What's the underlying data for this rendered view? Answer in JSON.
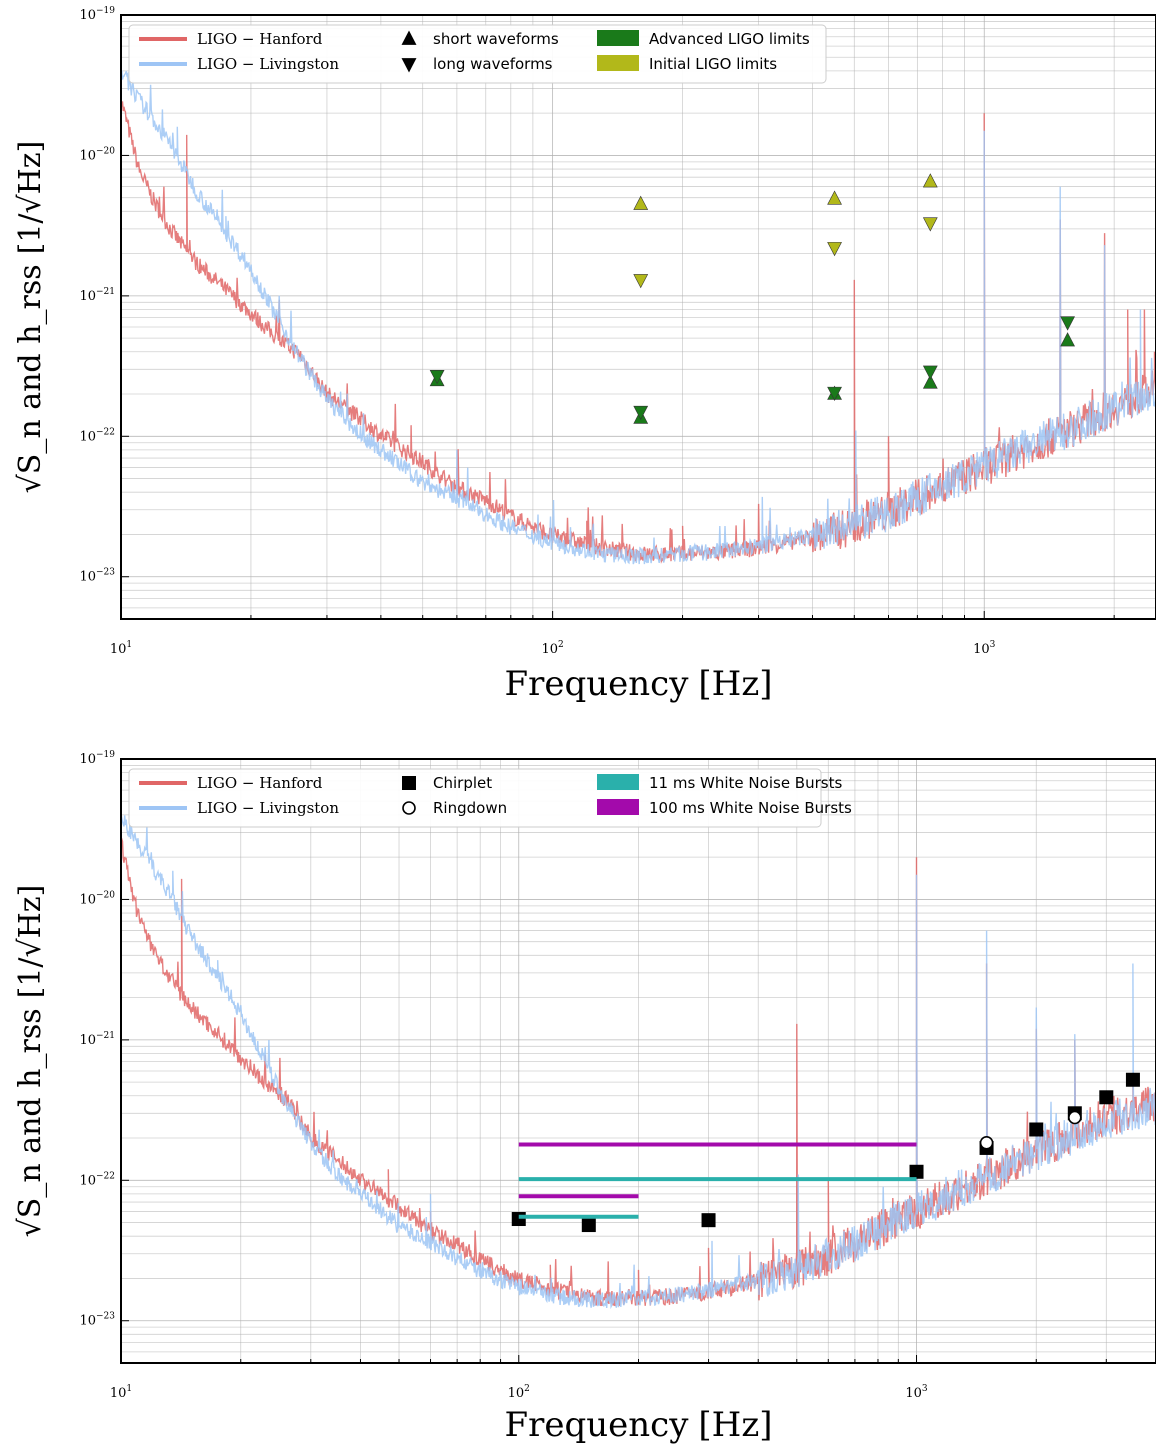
{
  "chart_data": [
    {
      "type": "line",
      "xscale": "log",
      "yscale": "log",
      "xlim": [
        10,
        2500
      ],
      "ylim": [
        5e-24,
        1e-19
      ],
      "grid": true,
      "legend_position": "top-left",
      "xlabel_text": "Frequency",
      "xlabel_unit": "[Hz]",
      "ylabel_text": "√S_n  and  h_rss",
      "ylabel_unit": "[1/√Hz]",
      "x_ticks": [
        {
          "value": 10,
          "base": "10",
          "exp": "1"
        },
        {
          "value": 100,
          "base": "10",
          "exp": "2"
        },
        {
          "value": 1000,
          "base": "10",
          "exp": "3"
        }
      ],
      "y_ticks": [
        {
          "value": 1e-19,
          "base": "10",
          "exp": "−19"
        },
        {
          "value": 1e-20,
          "base": "10",
          "exp": "−20"
        },
        {
          "value": 1e-21,
          "base": "10",
          "exp": "−21"
        },
        {
          "value": 1e-22,
          "base": "10",
          "exp": "−22"
        },
        {
          "value": 1e-23,
          "base": "10",
          "exp": "−23"
        }
      ],
      "series": [
        {
          "name": "LIGO − Hanford",
          "color": "#e06666",
          "floor": [
            [
              10,
              2.5e-20
            ],
            [
              11,
              8e-21
            ],
            [
              12,
              4.5e-21
            ],
            [
              13,
              3e-21
            ],
            [
              14,
              2.2e-21
            ],
            [
              15,
              1.7e-21
            ],
            [
              17,
              1.2e-21
            ],
            [
              20,
              7.5e-22
            ],
            [
              23,
              5e-22
            ],
            [
              26,
              3.8e-22
            ],
            [
              30,
              2e-22
            ],
            [
              35,
              1.4e-22
            ],
            [
              40,
              1.02e-22
            ],
            [
              50,
              6.5e-23
            ],
            [
              60,
              4.3e-23
            ],
            [
              70,
              3.5e-23
            ],
            [
              80,
              2.7e-23
            ],
            [
              100,
              1.95e-23
            ],
            [
              130,
              1.6e-23
            ],
            [
              160,
              1.45e-23
            ],
            [
              200,
              1.45e-23
            ],
            [
              250,
              1.5e-23
            ],
            [
              300,
              1.6e-23
            ],
            [
              400,
              1.9e-23
            ],
            [
              500,
              2.3e-23
            ],
            [
              600,
              2.9e-23
            ],
            [
              700,
              3.6e-23
            ],
            [
              800,
              4.4e-23
            ],
            [
              1000,
              6e-23
            ],
            [
              1300,
              8.7e-23
            ],
            [
              1600,
              1.15e-22
            ],
            [
              2000,
              1.6e-22
            ],
            [
              2500,
              2.2e-22
            ]
          ],
          "lines": [
            [
              14.2,
              1.4e-20
            ],
            [
              47,
              1.2e-22
            ],
            [
              60,
              6e-23
            ],
            [
              70,
              3.5e-23
            ],
            [
              120,
              2.5e-23
            ],
            [
              200,
              2.3e-23
            ],
            [
              300,
              3.3e-23
            ],
            [
              500,
              1.3e-21
            ],
            [
              600,
              1e-22
            ],
            [
              1000,
              2e-20
            ],
            [
              1500,
              3.5e-21
            ],
            [
              1900,
              2.8e-21
            ],
            [
              2150,
              8e-22
            ],
            [
              2350,
              8e-22
            ],
            [
              2480,
              4e-22
            ]
          ]
        },
        {
          "name": "LIGO − Livingston",
          "color": "#9ec5f5",
          "floor": [
            [
              10,
              4e-20
            ],
            [
              11,
              2.5e-20
            ],
            [
              12,
              1.7e-20
            ],
            [
              13,
              1.2e-20
            ],
            [
              14,
              8e-21
            ],
            [
              15,
              5.5e-21
            ],
            [
              17,
              3.2e-21
            ],
            [
              20,
              1.55e-21
            ],
            [
              23,
              7e-22
            ],
            [
              26,
              3.6e-22
            ],
            [
              30,
              1.85e-22
            ],
            [
              35,
              1.1e-22
            ],
            [
              40,
              8e-23
            ],
            [
              50,
              4.7e-23
            ],
            [
              60,
              3.6e-23
            ],
            [
              70,
              2.8e-23
            ],
            [
              80,
              2.25e-23
            ],
            [
              100,
              1.75e-23
            ],
            [
              130,
              1.45e-23
            ],
            [
              160,
              1.4e-23
            ],
            [
              200,
              1.45e-23
            ],
            [
              250,
              1.52e-23
            ],
            [
              300,
              1.65e-23
            ],
            [
              400,
              1.95e-23
            ],
            [
              500,
              2.35e-23
            ],
            [
              600,
              2.9e-23
            ],
            [
              700,
              3.6e-23
            ],
            [
              800,
              4.4e-23
            ],
            [
              1000,
              6.1e-23
            ],
            [
              1300,
              8.8e-23
            ],
            [
              1600,
              1.15e-22
            ],
            [
              2000,
              1.6e-22
            ],
            [
              2500,
              2.1e-22
            ]
          ],
          "lines": [
            [
              13.5,
              1.6e-20
            ],
            [
              17.5,
              3.7e-21
            ],
            [
              60,
              8e-23
            ],
            [
              306,
              3.7e-23
            ],
            [
              504,
              1.1e-22
            ],
            [
              1000,
              1.5e-20
            ],
            [
              1500,
              6e-21
            ],
            [
              1900,
              2.3e-21
            ],
            [
              2300,
              8e-22
            ]
          ]
        },
        {
          "name": "short waveforms",
          "marker": "triangle-up",
          "color": "#000000"
        },
        {
          "name": "long waveforms",
          "marker": "triangle-down",
          "color": "#000000"
        },
        {
          "name": "Advanced LIGO limits",
          "color": "#1a7a1a",
          "points": [
            {
              "x": 54,
              "y": 2.5e-22,
              "marker": "up"
            },
            {
              "x": 54,
              "y": 2.7e-22,
              "marker": "down"
            },
            {
              "x": 160,
              "y": 1.35e-22,
              "marker": "up"
            },
            {
              "x": 160,
              "y": 1.5e-22,
              "marker": "down"
            },
            {
              "x": 450,
              "y": 2e-22,
              "marker": "up"
            },
            {
              "x": 450,
              "y": 2.05e-22,
              "marker": "down"
            },
            {
              "x": 750,
              "y": 2.4e-22,
              "marker": "up"
            },
            {
              "x": 750,
              "y": 2.9e-22,
              "marker": "down"
            },
            {
              "x": 1560,
              "y": 4.8e-22,
              "marker": "up"
            },
            {
              "x": 1560,
              "y": 6.5e-22,
              "marker": "down"
            }
          ]
        },
        {
          "name": "Initial LIGO limits",
          "color": "#b2b81a",
          "points": [
            {
              "x": 160,
              "y": 4.5e-21,
              "marker": "up"
            },
            {
              "x": 160,
              "y": 1.3e-21,
              "marker": "down"
            },
            {
              "x": 450,
              "y": 4.9e-21,
              "marker": "up"
            },
            {
              "x": 450,
              "y": 2.2e-21,
              "marker": "down"
            },
            {
              "x": 750,
              "y": 6.5e-21,
              "marker": "up"
            },
            {
              "x": 750,
              "y": 3.3e-21,
              "marker": "down"
            }
          ]
        }
      ]
    },
    {
      "type": "line",
      "xscale": "log",
      "yscale": "log",
      "xlim": [
        10,
        4000
      ],
      "ylim": [
        5e-24,
        1e-19
      ],
      "grid": true,
      "legend_position": "top-left",
      "xlabel_text": "Frequency",
      "xlabel_unit": "[Hz]",
      "ylabel_text": "√S_n  and  h_rss",
      "ylabel_unit": "[1/√Hz]",
      "x_ticks": [
        {
          "value": 10,
          "base": "10",
          "exp": "1"
        },
        {
          "value": 100,
          "base": "10",
          "exp": "2"
        },
        {
          "value": 1000,
          "base": "10",
          "exp": "3"
        }
      ],
      "y_ticks": [
        {
          "value": 1e-19,
          "base": "10",
          "exp": "−19"
        },
        {
          "value": 1e-20,
          "base": "10",
          "exp": "−20"
        },
        {
          "value": 1e-21,
          "base": "10",
          "exp": "−21"
        },
        {
          "value": 1e-22,
          "base": "10",
          "exp": "−22"
        },
        {
          "value": 1e-23,
          "base": "10",
          "exp": "−23"
        }
      ],
      "series": [
        {
          "name": "LIGO − Hanford",
          "color": "#e06666",
          "floor": [
            [
              10,
              2.5e-20
            ],
            [
              11,
              8e-21
            ],
            [
              12,
              4.5e-21
            ],
            [
              13,
              3e-21
            ],
            [
              14,
              2.2e-21
            ],
            [
              15,
              1.7e-21
            ],
            [
              17,
              1.2e-21
            ],
            [
              20,
              7.5e-22
            ],
            [
              23,
              5e-22
            ],
            [
              26,
              3.8e-22
            ],
            [
              30,
              2e-22
            ],
            [
              35,
              1.4e-22
            ],
            [
              40,
              1.02e-22
            ],
            [
              50,
              6.5e-23
            ],
            [
              60,
              4.3e-23
            ],
            [
              70,
              3.5e-23
            ],
            [
              80,
              2.7e-23
            ],
            [
              100,
              1.95e-23
            ],
            [
              130,
              1.6e-23
            ],
            [
              160,
              1.45e-23
            ],
            [
              200,
              1.45e-23
            ],
            [
              250,
              1.5e-23
            ],
            [
              300,
              1.6e-23
            ],
            [
              400,
              1.9e-23
            ],
            [
              500,
              2.3e-23
            ],
            [
              600,
              2.9e-23
            ],
            [
              700,
              3.6e-23
            ],
            [
              800,
              4.4e-23
            ],
            [
              1000,
              6e-23
            ],
            [
              1300,
              8.7e-23
            ],
            [
              1600,
              1.15e-22
            ],
            [
              2000,
              1.6e-22
            ],
            [
              2500,
              2.2e-22
            ],
            [
              3000,
              2.8e-22
            ],
            [
              4000,
              3.5e-22
            ]
          ],
          "lines": [
            [
              14.2,
              1.4e-20
            ],
            [
              47,
              1.2e-22
            ],
            [
              60,
              6e-23
            ],
            [
              70,
              3.5e-23
            ],
            [
              120,
              2.5e-23
            ],
            [
              200,
              2.3e-23
            ],
            [
              300,
              3.3e-23
            ],
            [
              500,
              1.3e-21
            ],
            [
              600,
              1e-22
            ],
            [
              1000,
              2e-20
            ],
            [
              1500,
              3.5e-21
            ],
            [
              2000,
              1.2e-21
            ],
            [
              2500,
              1e-21
            ],
            [
              3500,
              5e-22
            ]
          ]
        },
        {
          "name": "LIGO − Livingston",
          "color": "#9ec5f5",
          "floor": [
            [
              10,
              4e-20
            ],
            [
              11,
              2.5e-20
            ],
            [
              12,
              1.7e-20
            ],
            [
              13,
              1.2e-20
            ],
            [
              14,
              8e-21
            ],
            [
              15,
              5.5e-21
            ],
            [
              17,
              3.2e-21
            ],
            [
              20,
              1.55e-21
            ],
            [
              23,
              7e-22
            ],
            [
              26,
              3.6e-22
            ],
            [
              30,
              1.85e-22
            ],
            [
              35,
              1.1e-22
            ],
            [
              40,
              8e-23
            ],
            [
              50,
              4.7e-23
            ],
            [
              60,
              3.6e-23
            ],
            [
              70,
              2.8e-23
            ],
            [
              80,
              2.25e-23
            ],
            [
              100,
              1.75e-23
            ],
            [
              130,
              1.45e-23
            ],
            [
              160,
              1.4e-23
            ],
            [
              200,
              1.45e-23
            ],
            [
              250,
              1.52e-23
            ],
            [
              300,
              1.65e-23
            ],
            [
              400,
              1.95e-23
            ],
            [
              500,
              2.35e-23
            ],
            [
              600,
              2.9e-23
            ],
            [
              700,
              3.6e-23
            ],
            [
              800,
              4.4e-23
            ],
            [
              1000,
              6.1e-23
            ],
            [
              1300,
              8.8e-23
            ],
            [
              1600,
              1.15e-22
            ],
            [
              2000,
              1.6e-22
            ],
            [
              2500,
              2.1e-22
            ],
            [
              3000,
              2.7e-22
            ],
            [
              4000,
              3.4e-22
            ]
          ],
          "lines": [
            [
              13.5,
              1.6e-20
            ],
            [
              17.5,
              3.7e-21
            ],
            [
              60,
              8e-23
            ],
            [
              306,
              3.7e-23
            ],
            [
              504,
              1.1e-22
            ],
            [
              1000,
              1.5e-20
            ],
            [
              1500,
              6e-21
            ],
            [
              2000,
              1.7e-21
            ],
            [
              2500,
              1.1e-21
            ],
            [
              3500,
              3.5e-21
            ]
          ]
        },
        {
          "name": "Chirplet",
          "marker": "square",
          "color": "#000000",
          "points": [
            {
              "x": 100,
              "y": 5.3e-23
            },
            {
              "x": 150,
              "y": 4.8e-23
            },
            {
              "x": 300,
              "y": 5.2e-23
            },
            {
              "x": 1000,
              "y": 1.15e-22
            },
            {
              "x": 1500,
              "y": 1.7e-22
            },
            {
              "x": 2000,
              "y": 2.3e-22
            },
            {
              "x": 2500,
              "y": 3e-22
            },
            {
              "x": 3000,
              "y": 3.9e-22
            },
            {
              "x": 3500,
              "y": 5.2e-22
            }
          ]
        },
        {
          "name": "Ringdown",
          "marker": "circle-open",
          "color": "#000000",
          "points": [
            {
              "x": 1500,
              "y": 1.85e-22
            },
            {
              "x": 2500,
              "y": 2.8e-22
            }
          ]
        },
        {
          "name": "11 ms White Noise Bursts",
          "color": "#2ab0ab",
          "segments": [
            {
              "x0": 100,
              "x1": 1000,
              "y": 1.02e-22
            },
            {
              "x0": 100,
              "x1": 200,
              "y": 5.5e-23
            }
          ]
        },
        {
          "name": "100 ms White Noise Bursts",
          "color": "#a30aab",
          "segments": [
            {
              "x0": 100,
              "x1": 1000,
              "y": 1.8e-22
            },
            {
              "x0": 100,
              "x1": 200,
              "y": 7.7e-23
            }
          ]
        }
      ]
    }
  ]
}
